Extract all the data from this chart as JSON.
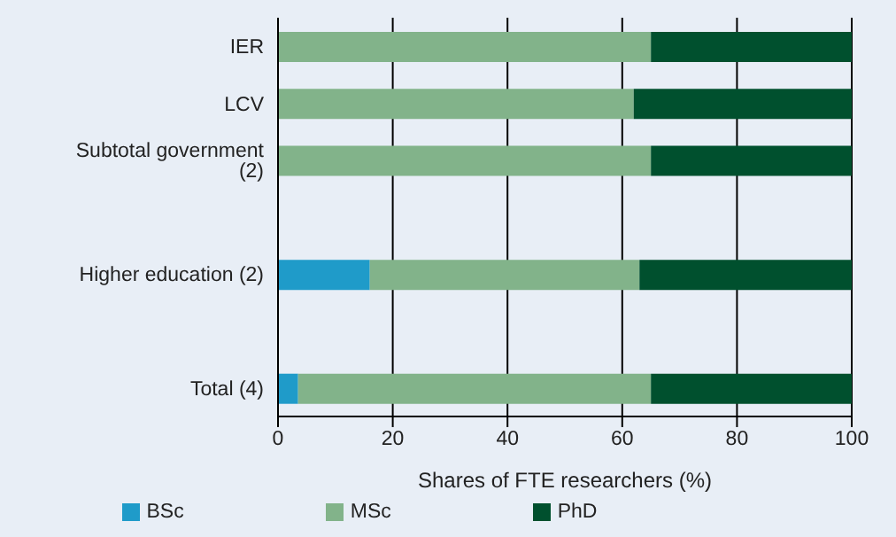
{
  "chart_data": {
    "type": "bar",
    "orientation": "horizontal",
    "stacked": true,
    "xlabel": "Shares of FTE researchers (%)",
    "categories": [
      "IER",
      "LCV",
      "Subtotal government (2)",
      null,
      "Higher education  (2)",
      null,
      "Total (4)"
    ],
    "series": [
      {
        "name": "BSc",
        "color": "#1f9bc9",
        "values": [
          0,
          0,
          0,
          null,
          16,
          null,
          3.5
        ]
      },
      {
        "name": "MSc",
        "color": "#82b38a",
        "values": [
          65,
          62,
          65,
          null,
          47,
          null,
          61.5
        ]
      },
      {
        "name": "PhD",
        "color": "#00502e",
        "values": [
          35,
          38,
          35,
          null,
          37,
          null,
          35
        ]
      }
    ],
    "xlim": [
      0,
      100
    ],
    "xticks": [
      0,
      20,
      40,
      60,
      80,
      100
    ],
    "grid": "x",
    "legend": "bottom"
  }
}
